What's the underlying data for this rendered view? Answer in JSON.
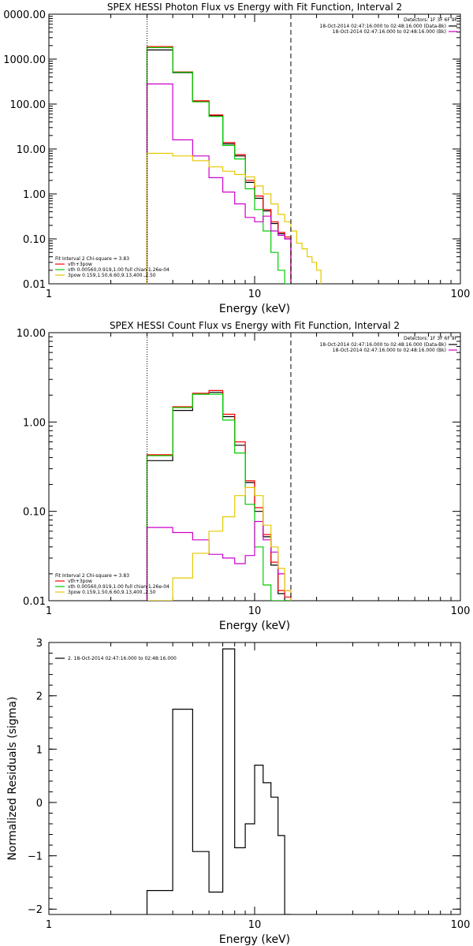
{
  "chart_data": [
    {
      "type": "line",
      "title": "SPEX HESSI Photon Flux vs Energy with Fit Function, Interval 2",
      "xlabel": "Energy (keV)",
      "ylabel": "",
      "x_scale": "log",
      "y_scale": "log",
      "xlim": [
        1,
        100
      ],
      "ylim": [
        0.01,
        10000
      ],
      "x_ticks": [
        "1",
        "10",
        "100"
      ],
      "y_ticks": [
        "0000.00",
        "1000.00",
        "100.00",
        "10.00",
        "1.00",
        "0.10",
        "0.01"
      ],
      "vlines": [
        {
          "x": 3,
          "style": "dotted"
        },
        {
          "x": 15,
          "style": "dashed"
        }
      ],
      "legend_topright": {
        "title": "Detectors: 1F 3F 6F 9F",
        "entries": [
          {
            "label": "18-Oct-2014 02:47:16.000 to 02:48:16.000 (Data-Bk)",
            "color": "#000000"
          },
          {
            "label": "18-Oct-2014 02:47:16.000 to 02:48:16.000 (Bk)",
            "color": "#cc00cc"
          }
        ]
      },
      "legend_bottomleft": {
        "title": "Fit Interval 2   Chi-square = 3.83",
        "entries": [
          {
            "label": "vth+3pow",
            "color": "#ff0000"
          },
          {
            "label": "vth 0.00560,0.919,1.00  full chian 1.26e-04",
            "color": "#00cc00"
          },
          {
            "label": "3pow 0.159,1.50,6.60,9.13,400.,2.50",
            "color": "#e6c800"
          }
        ]
      },
      "series": [
        {
          "color": "#000000",
          "edges": [
            3,
            4,
            5,
            6,
            7,
            8,
            9,
            10,
            11,
            12,
            13,
            14,
            15
          ],
          "values": [
            1600,
            500,
            115,
            55,
            13,
            7,
            1.8,
            0.8,
            0.42,
            0.22,
            0.13,
            0.1
          ]
        },
        {
          "color": "#ff0000",
          "edges": [
            3,
            4,
            5,
            6,
            7,
            8,
            9,
            10,
            11,
            12,
            13,
            14,
            15
          ],
          "values": [
            1900,
            520,
            118,
            57,
            14,
            7.5,
            2.0,
            0.9,
            0.45,
            0.24,
            0.14,
            0.11
          ]
        },
        {
          "color": "#00cc00",
          "edges": [
            3,
            4,
            5,
            6,
            7,
            8,
            9,
            10,
            11,
            12,
            13,
            14,
            15
          ],
          "values": [
            1800,
            510,
            112,
            53,
            12,
            6,
            1.3,
            0.45,
            0.15,
            0.05,
            0.02,
            0.01
          ]
        },
        {
          "color": "#cc00cc",
          "edges": [
            3,
            4,
            5,
            6,
            7,
            8,
            9,
            10,
            11,
            12,
            13,
            14,
            15
          ],
          "values": [
            280,
            16,
            7,
            2.3,
            1.1,
            0.6,
            0.3,
            0.24,
            0.32,
            0.15,
            0.12,
            0.1
          ]
        },
        {
          "color": "#e6c800",
          "edges": [
            3,
            4,
            5,
            6,
            7,
            8,
            9,
            10,
            11,
            12,
            13,
            14,
            15,
            16,
            17,
            18,
            19,
            20,
            21
          ],
          "values": [
            8,
            7,
            5.5,
            4,
            3.2,
            2.7,
            2.4,
            1.5,
            1.0,
            0.6,
            0.35,
            0.24,
            0.15,
            0.08,
            0.06,
            0.04,
            0.03,
            0.02
          ]
        }
      ]
    },
    {
      "type": "line",
      "title": "SPEX HESSI Count Flux vs Energy with Fit Function, Interval 2",
      "xlabel": "Energy (keV)",
      "ylabel": "",
      "x_scale": "log",
      "y_scale": "log",
      "xlim": [
        1,
        100
      ],
      "ylim": [
        0.01,
        10
      ],
      "x_ticks": [
        "1",
        "10",
        "100"
      ],
      "y_ticks": [
        "10.00",
        "1.00",
        "0.10",
        "0.01"
      ],
      "vlines": [
        {
          "x": 3,
          "style": "dotted"
        },
        {
          "x": 15,
          "style": "dashed"
        }
      ],
      "legend_topright": {
        "title": "Detectors: 1F 3F 6F 9F",
        "entries": [
          {
            "label": "18-Oct-2014 02:47:16.000 to 02:48:16.000 (Data-Bk)",
            "color": "#000000"
          },
          {
            "label": "18-Oct-2014 02:47:16.000 to 02:48:16.000 (Bk)",
            "color": "#cc00cc"
          }
        ]
      },
      "legend_bottomleft": {
        "title": "Fit Interval 2   Chi-square = 3.83",
        "entries": [
          {
            "label": "vth+3pow",
            "color": "#ff0000"
          },
          {
            "label": "vth 0.00560,0.919,1.00  full chian 1.26e-04",
            "color": "#00cc00"
          },
          {
            "label": "3pow 0.159,1.50,6.60,9.13,400.,2.50",
            "color": "#e6c800"
          }
        ]
      },
      "series": [
        {
          "color": "#000000",
          "edges": [
            3,
            4,
            5,
            6,
            7,
            8,
            9,
            10,
            11,
            12,
            13,
            14,
            15
          ],
          "values": [
            0.37,
            1.35,
            2.05,
            2.15,
            1.15,
            0.55,
            0.21,
            0.1,
            0.052,
            0.025,
            0.012,
            0.01
          ]
        },
        {
          "color": "#ff0000",
          "edges": [
            3,
            4,
            5,
            6,
            7,
            8,
            9,
            10,
            11,
            12,
            13,
            14,
            15
          ],
          "values": [
            0.43,
            1.48,
            2.1,
            2.25,
            1.22,
            0.6,
            0.22,
            0.11,
            0.055,
            0.027,
            0.013,
            0.011
          ]
        },
        {
          "color": "#00cc00",
          "edges": [
            3,
            4,
            5,
            6,
            7,
            8,
            9,
            10,
            11,
            12,
            13,
            14,
            15
          ],
          "values": [
            0.42,
            1.45,
            2.05,
            2.05,
            1.05,
            0.45,
            0.12,
            0.04,
            0.015,
            0.01,
            0.01,
            0.01
          ]
        },
        {
          "color": "#cc00cc",
          "edges": [
            3,
            4,
            5,
            6,
            7,
            8,
            9,
            10,
            11,
            12,
            13,
            14,
            15
          ],
          "values": [
            0.066,
            0.058,
            0.048,
            0.033,
            0.03,
            0.026,
            0.032,
            0.077,
            0.048,
            0.035,
            0.02,
            0.013
          ]
        },
        {
          "color": "#e6c800",
          "edges": [
            3,
            4,
            5,
            6,
            7,
            8,
            9,
            10,
            11,
            12,
            13,
            14,
            15
          ],
          "values": [
            0.01,
            0.018,
            0.034,
            0.06,
            0.087,
            0.15,
            0.185,
            0.15,
            0.07,
            0.04,
            0.023,
            0.013
          ]
        }
      ]
    },
    {
      "type": "line",
      "title": "",
      "xlabel": "Energy (keV)",
      "ylabel": "Normalized Residuals (sigma)",
      "x_scale": "log",
      "y_scale": "linear",
      "xlim": [
        1,
        100
      ],
      "ylim": [
        -2.1,
        3
      ],
      "x_ticks": [
        "1",
        "10",
        "100"
      ],
      "y_ticks": [
        "3",
        "2",
        "1",
        "0",
        "−1",
        "−2"
      ],
      "legend_topleft": {
        "entries": [
          {
            "label": "2. 18-Oct-2014 02:47:16.000 to 02:48:16.000",
            "color": "#000000"
          }
        ]
      },
      "series": [
        {
          "color": "#000000",
          "edges": [
            3,
            4,
            5,
            6,
            7,
            8,
            9,
            10,
            11,
            12,
            13,
            14,
            15
          ],
          "values": [
            -1.65,
            1.75,
            -0.92,
            -1.68,
            2.88,
            -0.85,
            -0.4,
            0.7,
            0.37,
            0.1,
            -0.62,
            -2.1
          ]
        }
      ]
    }
  ]
}
